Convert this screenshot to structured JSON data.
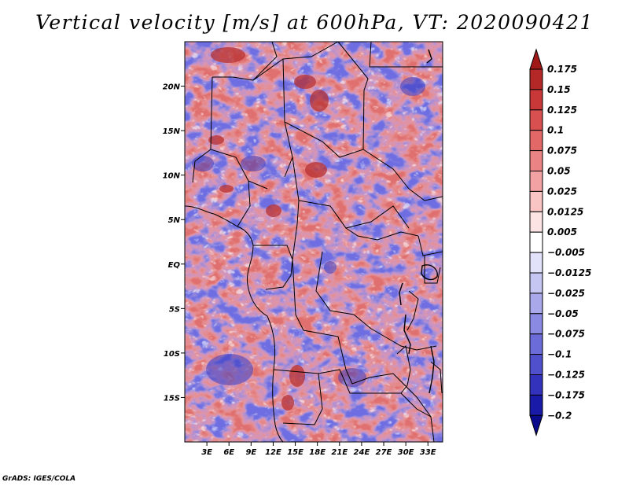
{
  "title": "Vertical velocity [m/s] at 600hPa, VT: 2020090421",
  "credit": "GrADS: IGES/COLA",
  "map": {
    "type": "heatmap",
    "variable": "Vertical velocity",
    "units": "m/s",
    "level": "600hPa",
    "valid_time": "2020090421",
    "lon_range": [
      0,
      35
    ],
    "lat_range": [
      -20,
      25
    ],
    "lon_ticks": [
      3,
      6,
      9,
      12,
      15,
      18,
      21,
      24,
      27,
      30,
      33
    ],
    "lon_tick_labels": [
      "3E",
      "6E",
      "9E",
      "12E",
      "15E",
      "18E",
      "21E",
      "24E",
      "27E",
      "30E",
      "33E"
    ],
    "lat_ticks": [
      20,
      15,
      10,
      5,
      0,
      -5,
      -10,
      -15
    ],
    "lat_tick_labels": [
      "20N",
      "15N",
      "10N",
      "5N",
      "EQ",
      "5S",
      "10S",
      "15S"
    ]
  },
  "colorbar": {
    "levels": [
      "0.175",
      "0.15",
      "0.125",
      "0.1",
      "0.075",
      "0.05",
      "0.025",
      "0.0125",
      "0.005",
      "−0.005",
      "−0.0125",
      "−0.025",
      "−0.05",
      "−0.075",
      "−0.1",
      "−0.125",
      "−0.175",
      "−0.2"
    ],
    "colors": [
      "#a01818",
      "#b42828",
      "#c83838",
      "#d85050",
      "#e26868",
      "#ea8484",
      "#f2a2a2",
      "#f8c4c4",
      "#fce4e4",
      "#ffffff",
      "#e2e2fa",
      "#c6c6f2",
      "#a8a8ea",
      "#8a8ae2",
      "#6c6cd8",
      "#5050cc",
      "#3232bc",
      "#1a1aa8",
      "#0a0a8c"
    ]
  }
}
